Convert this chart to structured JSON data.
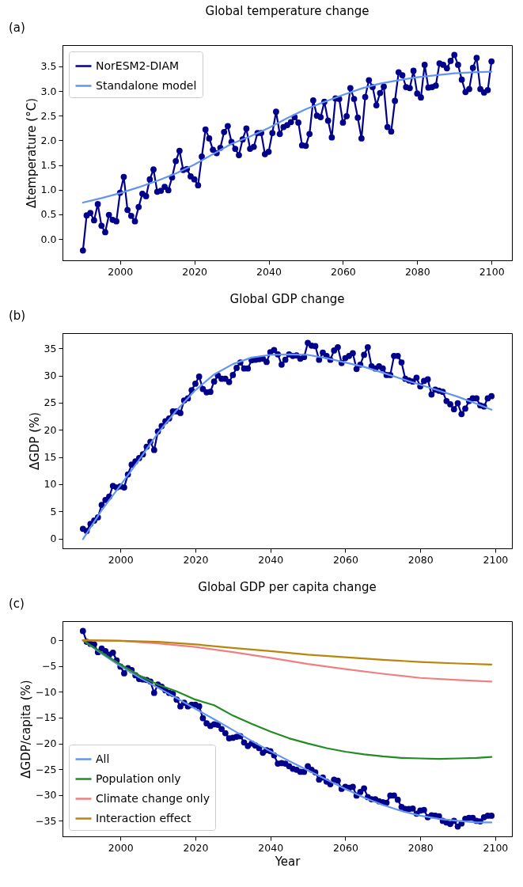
{
  "chart_data": [
    {
      "type": "line",
      "title": "Global temperature change",
      "ylabel": "Δtemperature (°C)",
      "annotations": [
        "(a)"
      ],
      "x": [
        1990,
        1991,
        1992,
        1993,
        1994,
        1995,
        1996,
        1997,
        1998,
        1999,
        2000,
        2001,
        2002,
        2003,
        2004,
        2005,
        2006,
        2007,
        2008,
        2009,
        2010,
        2011,
        2012,
        2013,
        2014,
        2015,
        2016,
        2017,
        2018,
        2019,
        2020,
        2021,
        2022,
        2023,
        2024,
        2025,
        2026,
        2027,
        2028,
        2029,
        2030,
        2031,
        2032,
        2033,
        2034,
        2035,
        2036,
        2037,
        2038,
        2039,
        2040,
        2041,
        2042,
        2043,
        2044,
        2045,
        2046,
        2047,
        2048,
        2049,
        2050,
        2051,
        2052,
        2053,
        2054,
        2055,
        2056,
        2057,
        2058,
        2059,
        2060,
        2061,
        2062,
        2063,
        2064,
        2065,
        2066,
        2067,
        2068,
        2069,
        2070,
        2071,
        2072,
        2073,
        2074,
        2075,
        2076,
        2077,
        2078,
        2079,
        2080,
        2081,
        2082,
        2083,
        2084,
        2085,
        2086,
        2087,
        2088,
        2089,
        2090,
        2091,
        2092,
        2093,
        2094,
        2095,
        2096,
        2097,
        2098,
        2099,
        2100
      ],
      "xlim": [
        1984.5,
        2105.5
      ],
      "xticks": [
        2000,
        2020,
        2040,
        2060,
        2080,
        2100
      ],
      "ylim": [
        -0.43,
        3.93
      ],
      "yticks": [
        {
          "value": 0,
          "label": "0.0"
        },
        0.5,
        {
          "value": 1,
          "label": "1.0"
        },
        1.5,
        {
          "value": 2,
          "label": "2.0"
        },
        2.5,
        {
          "value": 3,
          "label": "3.0"
        },
        3.5
      ],
      "legend": "top left",
      "series": [
        {
          "name": "NorESM2-DIAM",
          "color": "#00008b",
          "marker": "circle",
          "values": [
            -0.23,
            0.48,
            0.53,
            0.38,
            0.71,
            0.27,
            0.14,
            0.49,
            0.39,
            0.36,
            0.94,
            1.26,
            0.59,
            0.47,
            0.36,
            0.65,
            0.92,
            0.87,
            1.21,
            1.41,
            0.96,
            0.98,
            1.06,
            0.99,
            1.25,
            1.58,
            1.79,
            1.4,
            1.42,
            1.27,
            1.21,
            1.09,
            1.67,
            2.22,
            2.04,
            1.81,
            1.74,
            1.85,
            2.17,
            2.29,
            1.97,
            1.83,
            1.7,
            2.02,
            2.24,
            1.83,
            1.87,
            2.15,
            2.15,
            1.72,
            1.77,
            2.15,
            2.58,
            2.13,
            2.27,
            2.31,
            2.37,
            2.47,
            2.36,
            1.9,
            1.89,
            2.13,
            2.81,
            2.5,
            2.47,
            2.78,
            2.4,
            2.06,
            2.85,
            2.84,
            2.36,
            2.49,
            3.06,
            2.84,
            2.46,
            2.04,
            2.88,
            3.22,
            3.08,
            2.71,
            2.96,
            3.09,
            2.27,
            2.18,
            2.8,
            3.38,
            3.32,
            3.08,
            3.06,
            3.41,
            2.95,
            2.87,
            3.53,
            3.07,
            3.08,
            3.11,
            3.56,
            3.53,
            3.46,
            3.61,
            3.73,
            3.53,
            3.23,
            2.98,
            3.04,
            3.47,
            3.67,
            3.04,
            2.97,
            3.02,
            3.6
          ]
        },
        {
          "name": "Standalone model",
          "color": "#6495ed",
          "x": [
            1990,
            1995,
            2000,
            2005,
            2010,
            2015,
            2020,
            2025,
            2030,
            2035,
            2040,
            2045,
            2050,
            2055,
            2060,
            2065,
            2070,
            2075,
            2080,
            2085,
            2090,
            2095,
            2100
          ],
          "values": [
            0.74,
            0.83,
            0.93,
            1.05,
            1.18,
            1.33,
            1.51,
            1.72,
            1.93,
            2.08,
            2.25,
            2.45,
            2.63,
            2.78,
            2.92,
            3.05,
            3.15,
            3.22,
            3.28,
            3.32,
            3.36,
            3.38,
            3.39
          ]
        }
      ]
    },
    {
      "type": "line",
      "title": "Global GDP change",
      "ylabel": "ΔGDP (%)",
      "annotations": [
        "(b)"
      ],
      "x": [
        1990,
        1991,
        1992,
        1993,
        1994,
        1995,
        1996,
        1997,
        1998,
        1999,
        2000,
        2001,
        2002,
        2003,
        2004,
        2005,
        2006,
        2007,
        2008,
        2009,
        2010,
        2011,
        2012,
        2013,
        2014,
        2015,
        2016,
        2017,
        2018,
        2019,
        2020,
        2021,
        2022,
        2023,
        2024,
        2025,
        2026,
        2027,
        2028,
        2029,
        2030,
        2031,
        2032,
        2033,
        2034,
        2035,
        2036,
        2037,
        2038,
        2039,
        2040,
        2041,
        2042,
        2043,
        2044,
        2045,
        2046,
        2047,
        2048,
        2049,
        2050,
        2051,
        2052,
        2053,
        2054,
        2055,
        2056,
        2057,
        2058,
        2059,
        2060,
        2061,
        2062,
        2063,
        2064,
        2065,
        2066,
        2067,
        2068,
        2069,
        2070,
        2071,
        2072,
        2073,
        2074,
        2075,
        2076,
        2077,
        2078,
        2079,
        2080,
        2081,
        2082,
        2083,
        2084,
        2085,
        2086,
        2087,
        2088,
        2089,
        2090,
        2091,
        2092,
        2093,
        2094,
        2095,
        2096,
        2097,
        2098,
        2099
      ],
      "xlim": [
        1984.55,
        2104.45
      ],
      "xticks": [
        2000,
        2020,
        2040,
        2060,
        2080,
        2100
      ],
      "ylim": [
        -1.8,
        37.8
      ],
      "yticks": [
        0,
        5,
        10,
        15,
        20,
        25,
        30,
        35
      ],
      "series": [
        {
          "color": "#00008b",
          "marker": "circle",
          "values": [
            1.8,
            1.4,
            2.7,
            3.3,
            3.9,
            6.2,
            7.1,
            7.7,
            9.7,
            9.4,
            9.6,
            9.4,
            11.8,
            13.6,
            14.2,
            14.8,
            15.5,
            16.9,
            17.8,
            16.3,
            19.7,
            20.7,
            21.6,
            22.1,
            23.4,
            23.4,
            23.1,
            25.4,
            25.8,
            27.3,
            28.5,
            29.8,
            27.5,
            26.9,
            27.0,
            28.9,
            30.0,
            29.4,
            29.4,
            28.8,
            30.1,
            31.4,
            32.4,
            31.3,
            31.3,
            32.8,
            32.9,
            33.0,
            33.1,
            32.5,
            34.3,
            34.7,
            33.9,
            32.0,
            32.9,
            33.9,
            33.6,
            33.7,
            33.1,
            33.4,
            36.0,
            35.5,
            35.4,
            32.9,
            34.2,
            33.6,
            32.9,
            34.6,
            35.2,
            32.3,
            33.2,
            33.6,
            34.1,
            31.2,
            32.0,
            33.8,
            35.2,
            31.7,
            31.3,
            31.7,
            31.3,
            30.1,
            30.1,
            33.6,
            33.6,
            32.4,
            29.4,
            29.1,
            28.9,
            29.6,
            28.0,
            29.0,
            29.3,
            26.5,
            27.4,
            27.2,
            27.0,
            25.3,
            24.7,
            23.8,
            24.9,
            22.9,
            23.9,
            25.3,
            25.8,
            25.8,
            24.5,
            24.3,
            25.8,
            26.2
          ]
        },
        {
          "color": "#6495ed",
          "x": [
            1990,
            1995,
            2000,
            2005,
            2010,
            2015,
            2020,
            2025,
            2030,
            2035,
            2040,
            2045,
            2050,
            2055,
            2060,
            2065,
            2070,
            2075,
            2080,
            2085,
            2090,
            2095,
            2099
          ],
          "values": [
            -0.1,
            5.2,
            9.8,
            14.5,
            19.4,
            23.6,
            27.3,
            30.2,
            32.1,
            33.3,
            33.8,
            33.9,
            33.8,
            33.2,
            32.4,
            31.6,
            30.5,
            29.4,
            28.3,
            27.2,
            26.1,
            24.8,
            23.7
          ]
        }
      ]
    },
    {
      "type": "line",
      "title": "Global GDP per capita change",
      "xlabel": "Year",
      "ylabel": "ΔGDP/capita (%)",
      "annotations": [
        "(c)"
      ],
      "x": [
        1990,
        1991,
        1992,
        1993,
        1994,
        1995,
        1996,
        1997,
        1998,
        1999,
        2000,
        2001,
        2002,
        2003,
        2004,
        2005,
        2006,
        2007,
        2008,
        2009,
        2010,
        2011,
        2012,
        2013,
        2014,
        2015,
        2016,
        2017,
        2018,
        2019,
        2020,
        2021,
        2022,
        2023,
        2024,
        2025,
        2026,
        2027,
        2028,
        2029,
        2030,
        2031,
        2032,
        2033,
        2034,
        2035,
        2036,
        2037,
        2038,
        2039,
        2040,
        2041,
        2042,
        2043,
        2044,
        2045,
        2046,
        2047,
        2048,
        2049,
        2050,
        2051,
        2052,
        2053,
        2054,
        2055,
        2056,
        2057,
        2058,
        2059,
        2060,
        2061,
        2062,
        2063,
        2064,
        2065,
        2066,
        2067,
        2068,
        2069,
        2070,
        2071,
        2072,
        2073,
        2074,
        2075,
        2076,
        2077,
        2078,
        2079,
        2080,
        2081,
        2082,
        2083,
        2084,
        2085,
        2086,
        2087,
        2088,
        2089,
        2090,
        2091,
        2092,
        2093,
        2094,
        2095,
        2096,
        2097,
        2098,
        2099
      ],
      "xlim": [
        1984.55,
        2104.45
      ],
      "xticks": [
        2000,
        2020,
        2040,
        2060,
        2080,
        2100
      ],
      "ylim": [
        -38.0,
        3.7
      ],
      "yticks": [
        -35,
        -30,
        -25,
        -20,
        -15,
        -10,
        -5,
        0
      ],
      "legend": "bottom left",
      "series": [
        {
          "color": "#00008b",
          "marker": "circle",
          "values": [
            1.8,
            -0.3,
            -0.7,
            -0.8,
            -2.3,
            -1.6,
            -2.1,
            -2.8,
            -2.4,
            -3.9,
            -5.1,
            -6.4,
            -5.4,
            -5.8,
            -6.8,
            -7.5,
            -7.6,
            -7.7,
            -8.0,
            -10.2,
            -8.6,
            -9.0,
            -9.7,
            -10.2,
            -10.4,
            -11.5,
            -12.8,
            -12.1,
            -12.8,
            -12.5,
            -12.5,
            -12.8,
            -15.1,
            -16.1,
            -16.6,
            -16.3,
            -16.4,
            -17.2,
            -18.0,
            -19.0,
            -18.9,
            -18.7,
            -18.6,
            -19.8,
            -20.5,
            -20.0,
            -20.4,
            -20.9,
            -21.8,
            -21.3,
            -21.5,
            -22.3,
            -23.9,
            -23.8,
            -23.9,
            -24.4,
            -24.9,
            -25.1,
            -25.5,
            -25.5,
            -24.4,
            -25.1,
            -25.6,
            -27.0,
            -26.6,
            -27.4,
            -27.9,
            -27.0,
            -27.2,
            -28.8,
            -28.4,
            -28.6,
            -28.4,
            -30.1,
            -29.4,
            -28.7,
            -30.4,
            -30.8,
            -30.8,
            -31.2,
            -31.4,
            -31.5,
            -30.1,
            -30.1,
            -30.9,
            -32.3,
            -32.7,
            -32.7,
            -32.6,
            -33.6,
            -33.0,
            -32.9,
            -34.3,
            -33.9,
            -34.0,
            -34.1,
            -35.0,
            -35.3,
            -35.6,
            -35.0,
            -36.1,
            -35.5,
            -34.6,
            -34.4,
            -34.4,
            -35.0,
            -35.1,
            -34.3,
            -34.0,
            -34.0
          ]
        },
        {
          "name": "All",
          "color": "#6495ed",
          "x": [
            1990,
            1995,
            2000,
            2005,
            2010,
            2015,
            2020,
            2025,
            2030,
            2035,
            2040,
            2045,
            2050,
            2055,
            2060,
            2065,
            2070,
            2075,
            2080,
            2085,
            2090,
            2095,
            2099
          ],
          "values": [
            0,
            -2.6,
            -5.0,
            -7.2,
            -9.2,
            -11.2,
            -13.3,
            -15.3,
            -17.4,
            -19.5,
            -21.5,
            -23.4,
            -25.2,
            -27.0,
            -28.8,
            -30.5,
            -31.9,
            -33.1,
            -34.0,
            -34.6,
            -35.0,
            -35.3,
            -35.3
          ]
        },
        {
          "name": "Population only",
          "color": "#228b22",
          "x": [
            1990,
            1995,
            2000,
            2005,
            2010,
            2015,
            2020,
            2025,
            2030,
            2035,
            2040,
            2045,
            2050,
            2055,
            2060,
            2065,
            2070,
            2075,
            2080,
            2085,
            2090,
            2095,
            2099
          ],
          "values": [
            0,
            -2.4,
            -4.7,
            -6.8,
            -8.6,
            -9.9,
            -11.5,
            -12.6,
            -14.6,
            -16.2,
            -17.7,
            -19.0,
            -20.0,
            -20.9,
            -21.6,
            -22.1,
            -22.5,
            -22.8,
            -22.9,
            -23.0,
            -22.9,
            -22.8,
            -22.6
          ]
        },
        {
          "name": "Climate change only",
          "color": "#f08080",
          "x": [
            1990,
            2000,
            2010,
            2020,
            2030,
            2040,
            2050,
            2060,
            2070,
            2080,
            2090,
            2099
          ],
          "values": [
            0,
            -0.1,
            -0.6,
            -1.3,
            -2.3,
            -3.4,
            -4.6,
            -5.6,
            -6.5,
            -7.3,
            -7.7,
            -8.0
          ]
        },
        {
          "name": "Interaction effect",
          "color": "#b8860b",
          "x": [
            1990,
            2000,
            2010,
            2020,
            2030,
            2040,
            2050,
            2060,
            2070,
            2080,
            2090,
            2099
          ],
          "values": [
            0,
            -0.1,
            -0.3,
            -0.8,
            -1.5,
            -2.1,
            -2.8,
            -3.3,
            -3.8,
            -4.2,
            -4.5,
            -4.7
          ]
        }
      ]
    }
  ]
}
